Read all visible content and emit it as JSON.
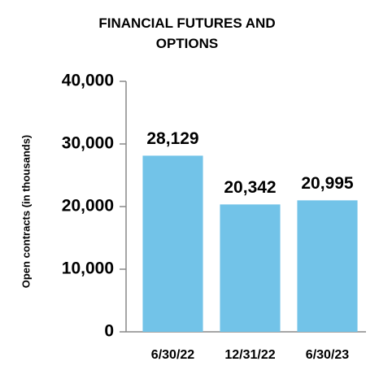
{
  "chart_data": {
    "type": "bar",
    "title": "FINANCIAL FUTURES AND OPTIONS",
    "y_label": "Open contracts (in thousands)",
    "categories": [
      "6/30/22",
      "12/31/22",
      "6/30/23"
    ],
    "values": [
      28129,
      20342,
      20995
    ],
    "value_labels": [
      "28,129",
      "20,342",
      "20,995"
    ],
    "color": "#72c3e8",
    "ylim": [
      0,
      40000
    ],
    "yticks": [
      0,
      {
        "value": 10000,
        "label": "10,000"
      },
      {
        "value": 20000,
        "label": "20,000"
      },
      {
        "value": 30000,
        "label": "30,000"
      },
      {
        "value": 40000,
        "label": "40,000"
      }
    ],
    "grid": false
  }
}
